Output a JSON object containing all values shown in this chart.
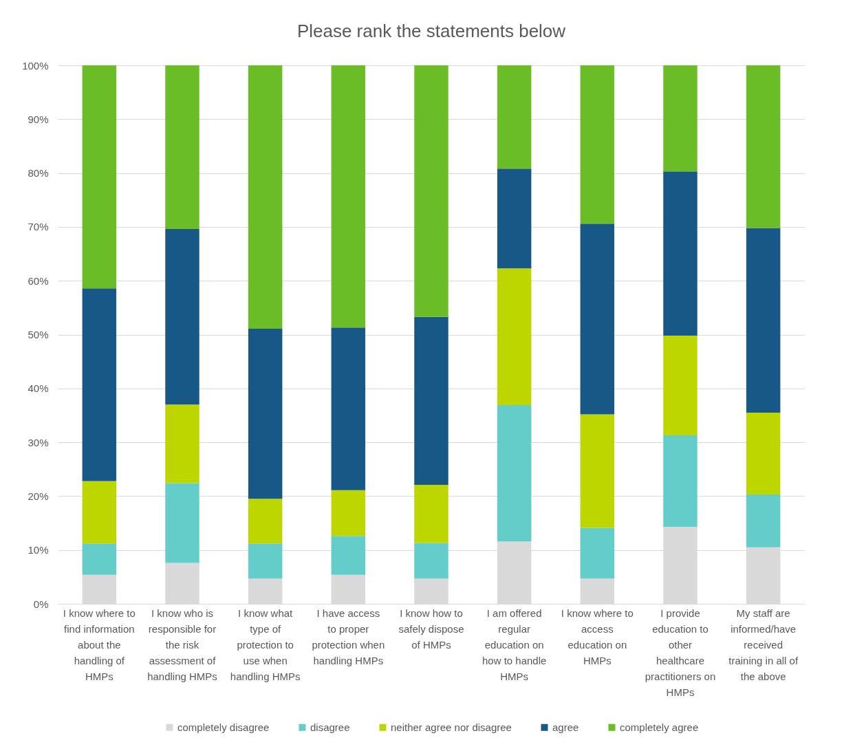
{
  "chart_data": {
    "type": "bar",
    "title": "Please rank the statements below",
    "categories": [
      "I know where to find information about the handling of HMPs",
      "I know who is responsible for the risk assessment of handling HMPs",
      "I know what type of protection to use when handling HMPs",
      "I have access to proper protection when handling HMPs",
      "I know how to safely dispose of HMPs",
      "I am offered regular education on how to handle HMPs",
      "I know where to access education on HMPs",
      "I provide education to other healthcare practitioners on HMPs",
      "My staff are informed/have received training in all of the above"
    ],
    "series": [
      {
        "name": "completely disagree",
        "color": "#d9d9d9",
        "values": [
          5.4,
          7.6,
          4.7,
          5.4,
          4.7,
          11.6,
          4.7,
          14.3,
          10.5
        ]
      },
      {
        "name": "disagree",
        "color": "#64cdc9",
        "values": [
          5.8,
          14.8,
          6.5,
          7.2,
          6.6,
          25.3,
          9.4,
          17.0,
          9.8
        ]
      },
      {
        "name": "neither agree nor disagree",
        "color": "#bed600",
        "values": [
          11.6,
          14.6,
          8.3,
          8.5,
          10.8,
          25.4,
          21.1,
          18.5,
          15.2
        ]
      },
      {
        "name": "agree",
        "color": "#185886",
        "values": [
          35.8,
          32.6,
          31.6,
          30.2,
          31.2,
          18.5,
          35.4,
          30.5,
          34.3
        ]
      },
      {
        "name": "completely agree",
        "color": "#6bbd28",
        "values": [
          41.4,
          30.4,
          48.9,
          48.7,
          46.7,
          19.2,
          29.4,
          19.7,
          30.2
        ]
      }
    ],
    "stacked": true,
    "ylim": [
      0,
      100
    ],
    "yticks": [
      {
        "value": 0,
        "label": "0%"
      },
      {
        "value": 10,
        "label": "10%"
      },
      {
        "value": 20,
        "label": "20%"
      },
      {
        "value": 30,
        "label": "30%"
      },
      {
        "value": 40,
        "label": "40%"
      },
      {
        "value": 50,
        "label": "50%"
      },
      {
        "value": 60,
        "label": "60%"
      },
      {
        "value": 70,
        "label": "70%"
      },
      {
        "value": 80,
        "label": "80%"
      },
      {
        "value": 90,
        "label": "90%"
      },
      {
        "value": 100,
        "label": "100%"
      }
    ],
    "grid": "y",
    "legend": "bottom"
  }
}
